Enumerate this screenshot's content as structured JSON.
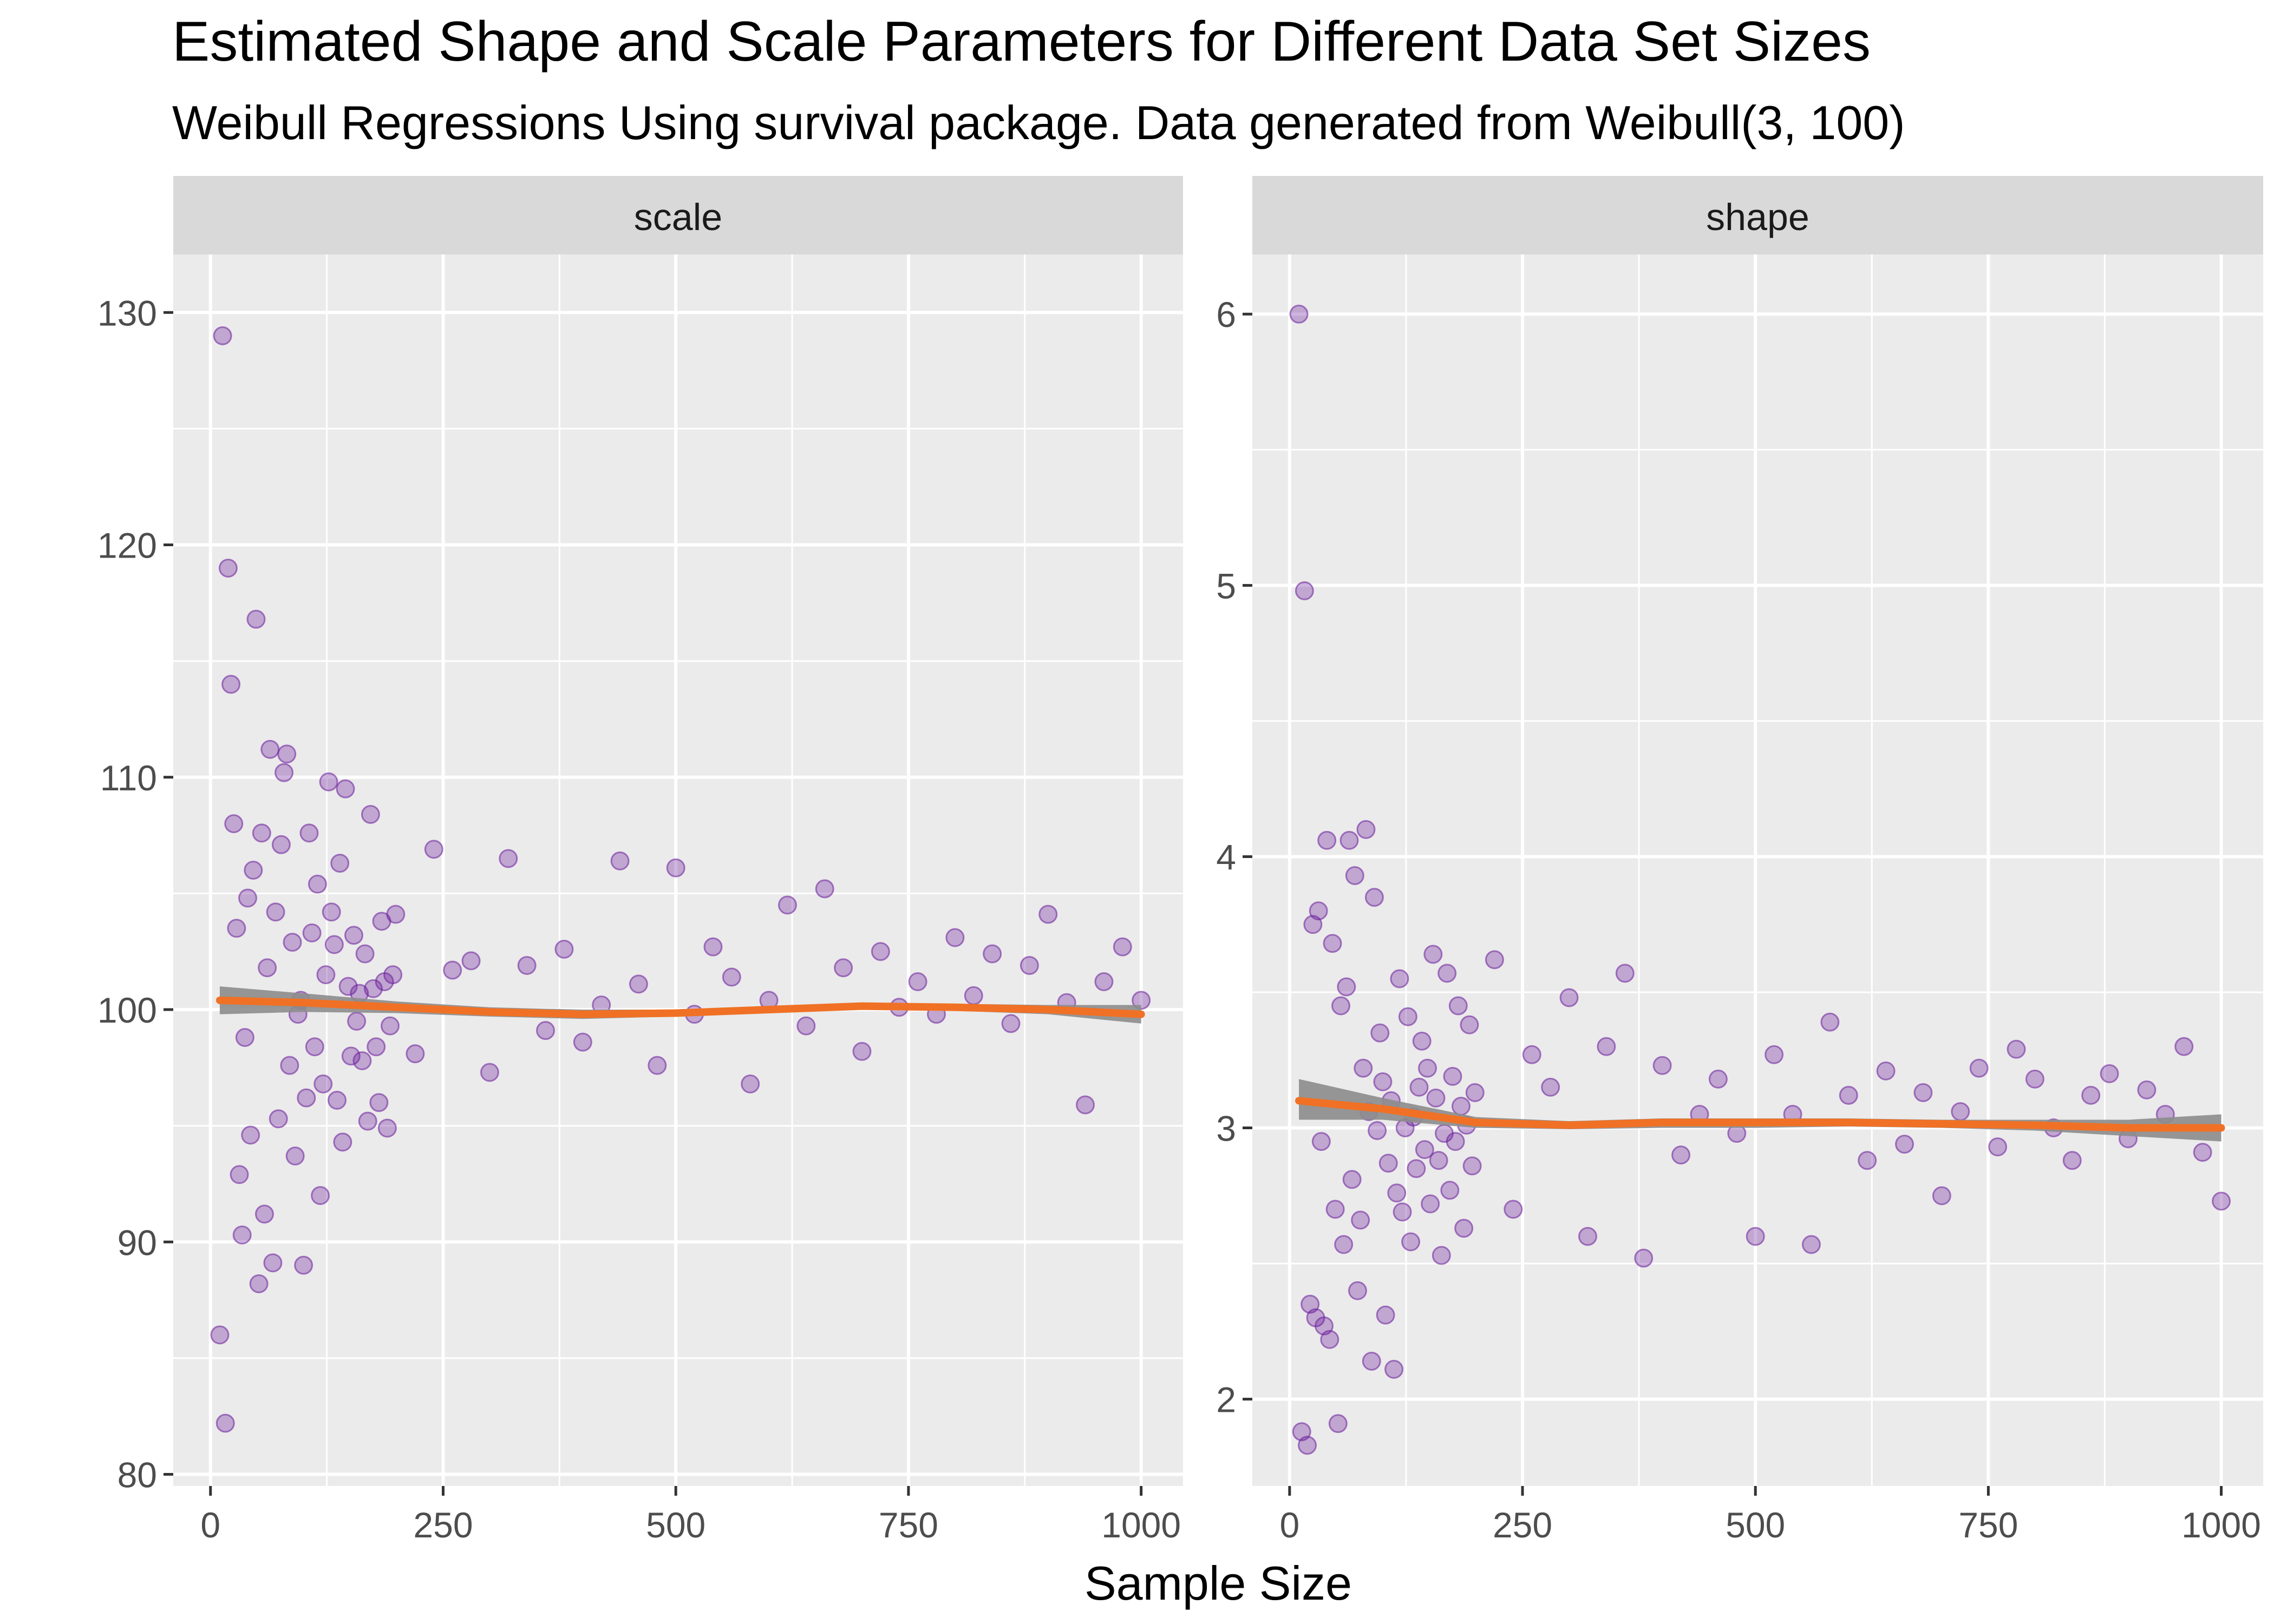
{
  "chart_data": {
    "type": "scatter",
    "title": "Estimated Shape and Scale Parameters for Different Data Set Sizes",
    "subtitle": "Weibull Regressions Using survival package.  Data generated from Weibull(3, 100)",
    "xlabel": "Sample Size",
    "colors": {
      "points": "#6a1b9a",
      "smooth_orange": "#f07125",
      "smooth_gray": "#8c8c8c",
      "panel_bg": "#ebebeb",
      "strip_bg": "#d9d9d9",
      "grid": "#ffffff"
    },
    "legend": "none",
    "grid": true,
    "panels": [
      {
        "strip": "scale",
        "xlim": [
          -40,
          1045
        ],
        "ylim": [
          79.5,
          132.5
        ],
        "x_ticks": [
          0,
          250,
          500,
          750,
          1000
        ],
        "y_ticks": [
          80,
          90,
          100,
          110,
          120,
          130
        ],
        "points": {
          "x": [
            10,
            13,
            16,
            19,
            22,
            25,
            28,
            31,
            34,
            37,
            40,
            43,
            46,
            49,
            52,
            55,
            58,
            61,
            64,
            67,
            70,
            73,
            76,
            79,
            82,
            85,
            88,
            91,
            94,
            97,
            100,
            103,
            106,
            109,
            112,
            115,
            118,
            121,
            124,
            127,
            130,
            133,
            136,
            139,
            142,
            145,
            148,
            151,
            154,
            157,
            160,
            163,
            166,
            169,
            172,
            175,
            178,
            181,
            184,
            187,
            190,
            193,
            196,
            199,
            220,
            240,
            260,
            280,
            300,
            320,
            340,
            360,
            380,
            400,
            420,
            440,
            460,
            480,
            500,
            520,
            540,
            560,
            580,
            600,
            620,
            640,
            660,
            680,
            700,
            720,
            740,
            760,
            780,
            800,
            820,
            840,
            860,
            880,
            900,
            920,
            940,
            960,
            980,
            1000
          ],
          "y": [
            86.0,
            129.0,
            82.2,
            119.0,
            114.0,
            108.0,
            103.5,
            92.9,
            90.3,
            98.8,
            104.8,
            94.6,
            106.0,
            116.8,
            88.2,
            107.6,
            91.2,
            101.8,
            111.2,
            89.1,
            104.2,
            95.3,
            107.1,
            110.2,
            111.0,
            97.6,
            102.9,
            93.7,
            99.8,
            100.4,
            89.0,
            96.2,
            107.6,
            103.3,
            98.4,
            105.4,
            92.0,
            96.8,
            101.5,
            109.8,
            104.2,
            102.8,
            96.1,
            106.3,
            94.3,
            109.5,
            101.0,
            98.0,
            103.2,
            99.5,
            100.7,
            97.8,
            102.4,
            95.2,
            108.4,
            100.9,
            98.4,
            96.0,
            103.8,
            101.2,
            94.9,
            99.3,
            101.5,
            104.1,
            98.1,
            106.9,
            101.7,
            102.1,
            97.3,
            106.5,
            101.9,
            99.1,
            102.6,
            98.6,
            100.2,
            106.4,
            101.1,
            97.6,
            106.1,
            99.8,
            102.7,
            101.4,
            96.8,
            100.4,
            104.5,
            99.3,
            105.2,
            101.8,
            98.2,
            102.5,
            100.1,
            101.2,
            99.8,
            103.1,
            100.6,
            102.4,
            99.4,
            101.9,
            104.1,
            100.3,
            95.9,
            101.2,
            102.7,
            100.4
          ]
        },
        "smooth": {
          "x": [
            10,
            100,
            200,
            300,
            400,
            500,
            600,
            700,
            800,
            900,
            1000
          ],
          "y": [
            100.4,
            100.3,
            100.1,
            99.9,
            99.8,
            99.85,
            100.0,
            100.15,
            100.1,
            100.0,
            99.8
          ]
        },
        "band": {
          "lower": [
            99.8,
            99.9,
            99.85,
            99.7,
            99.6,
            99.7,
            99.85,
            100.0,
            99.95,
            99.8,
            99.4
          ],
          "upper": [
            101.0,
            100.7,
            100.35,
            100.1,
            100.0,
            100.0,
            100.15,
            100.3,
            100.25,
            100.2,
            100.2
          ]
        }
      },
      {
        "strip": "shape",
        "xlim": [
          -40,
          1045
        ],
        "ylim": [
          1.68,
          6.22
        ],
        "x_ticks": [
          0,
          250,
          500,
          750,
          1000
        ],
        "y_ticks": [
          2,
          3,
          4,
          5,
          6
        ],
        "points": {
          "x": [
            10,
            13,
            16,
            19,
            22,
            25,
            28,
            31,
            34,
            37,
            40,
            43,
            46,
            49,
            52,
            55,
            58,
            61,
            64,
            67,
            70,
            73,
            76,
            79,
            82,
            85,
            88,
            91,
            94,
            97,
            100,
            103,
            106,
            109,
            112,
            115,
            118,
            121,
            124,
            127,
            130,
            133,
            136,
            139,
            142,
            145,
            148,
            151,
            154,
            157,
            160,
            163,
            166,
            169,
            172,
            175,
            178,
            181,
            184,
            187,
            190,
            193,
            196,
            199,
            220,
            240,
            260,
            280,
            300,
            320,
            340,
            360,
            380,
            400,
            420,
            440,
            460,
            480,
            500,
            520,
            540,
            560,
            580,
            600,
            620,
            640,
            660,
            680,
            700,
            720,
            740,
            760,
            780,
            800,
            820,
            840,
            860,
            880,
            900,
            920,
            940,
            960,
            980,
            1000
          ],
          "y": [
            6.0,
            1.88,
            4.98,
            1.83,
            2.35,
            3.75,
            2.3,
            3.8,
            2.95,
            2.27,
            4.06,
            2.22,
            3.68,
            2.7,
            1.91,
            3.45,
            2.57,
            3.52,
            4.06,
            2.81,
            3.93,
            2.4,
            2.66,
            3.22,
            4.1,
            3.06,
            2.14,
            3.85,
            2.99,
            3.35,
            3.17,
            2.31,
            2.87,
            3.1,
            2.11,
            2.76,
            3.55,
            2.69,
            3.0,
            3.41,
            2.58,
            3.04,
            2.85,
            3.15,
            3.32,
            2.92,
            3.22,
            2.72,
            3.64,
            3.11,
            2.88,
            2.53,
            2.98,
            3.57,
            2.77,
            3.19,
            2.95,
            3.45,
            3.08,
            2.63,
            3.01,
            3.38,
            2.86,
            3.13,
            3.62,
            2.7,
            3.27,
            3.15,
            3.48,
            2.6,
            3.3,
            3.57,
            2.52,
            3.23,
            2.9,
            3.05,
            3.18,
            2.98,
            2.6,
            3.27,
            3.05,
            2.57,
            3.39,
            3.12,
            2.88,
            3.21,
            2.94,
            3.13,
            2.75,
            3.06,
            3.22,
            2.93,
            3.29,
            3.18,
            3.0,
            2.88,
            3.12,
            3.2,
            2.96,
            3.14,
            3.05,
            3.3,
            2.91,
            2.73
          ]
        },
        "smooth": {
          "x": [
            10,
            100,
            200,
            300,
            400,
            500,
            600,
            700,
            800,
            900,
            1000
          ],
          "y": [
            3.1,
            3.07,
            3.02,
            3.01,
            3.02,
            3.02,
            3.02,
            3.015,
            3.01,
            3.0,
            3.0
          ]
        },
        "band": {
          "lower": [
            3.03,
            3.03,
            3.0,
            2.995,
            3.0,
            3.0,
            3.005,
            3.0,
            2.99,
            2.97,
            2.95
          ],
          "upper": [
            3.18,
            3.11,
            3.04,
            3.025,
            3.035,
            3.035,
            3.035,
            3.03,
            3.03,
            3.03,
            3.05
          ]
        }
      }
    ]
  }
}
